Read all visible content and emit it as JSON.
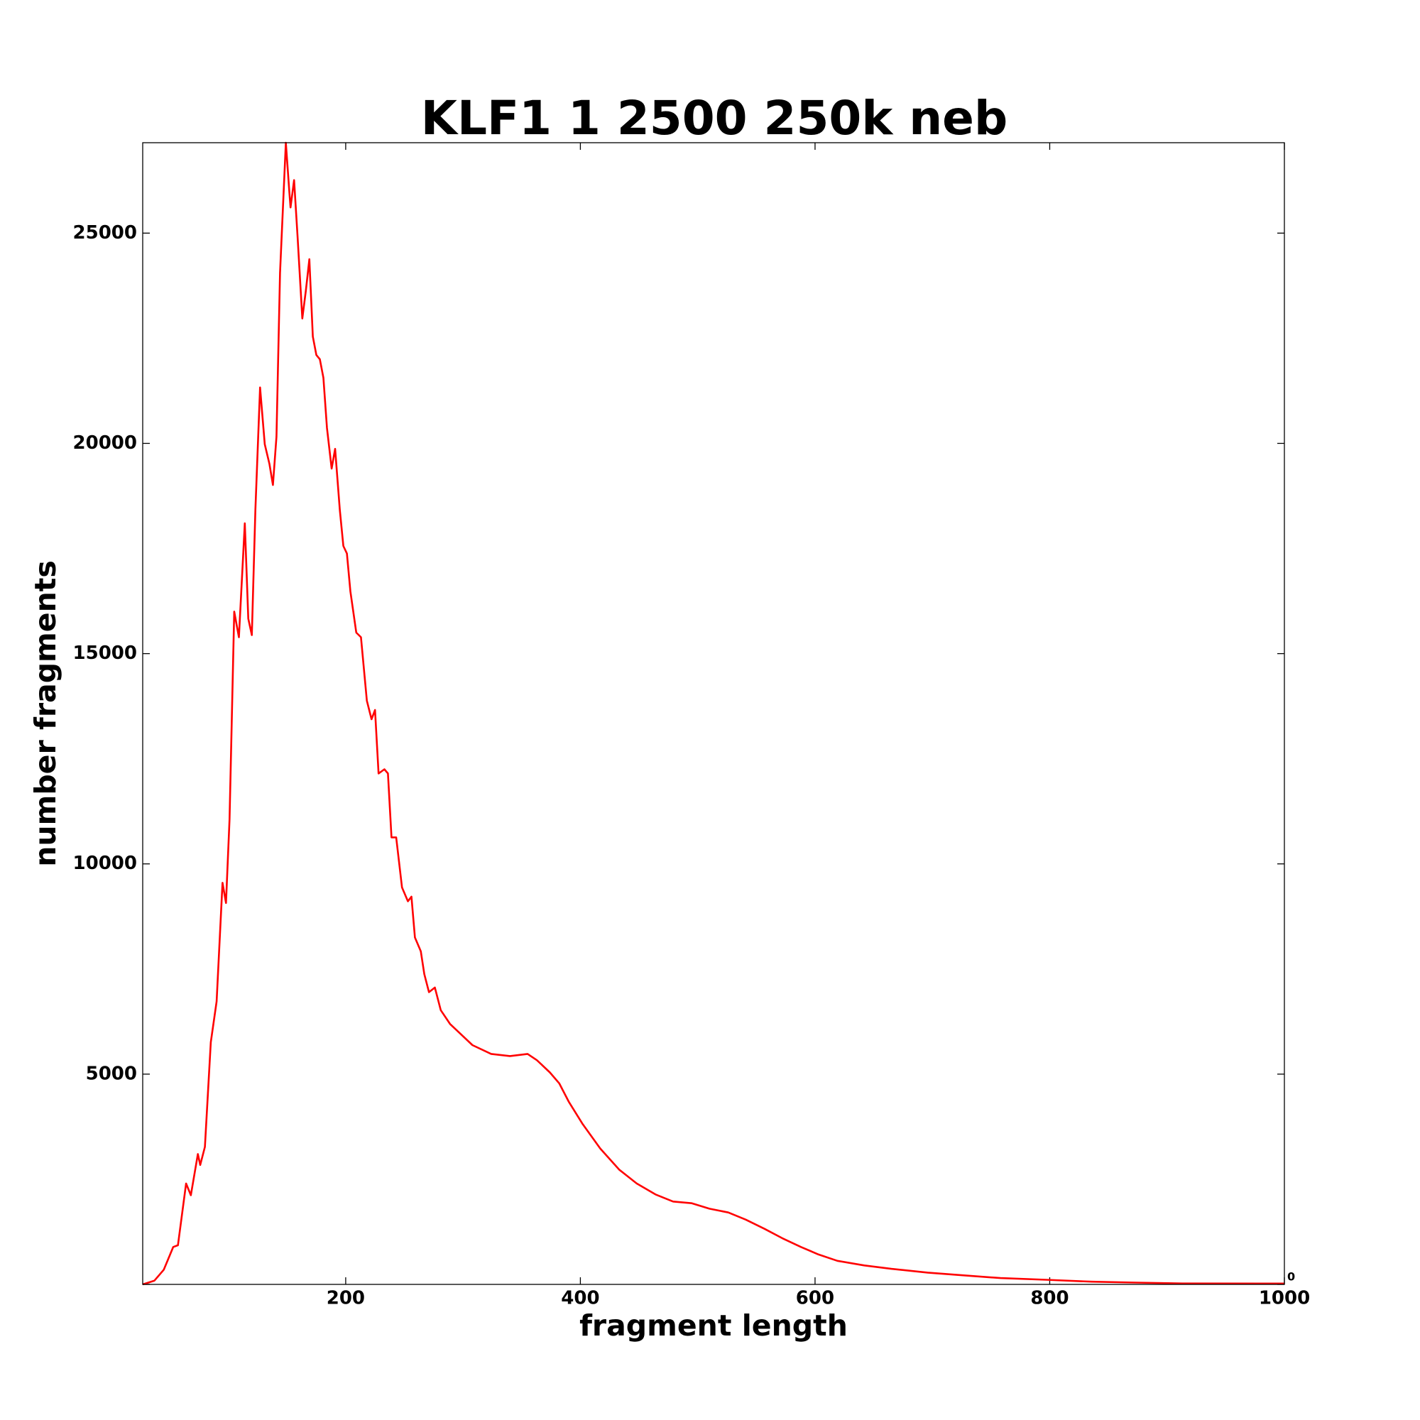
{
  "chart_data": {
    "type": "line",
    "title": "KLF1 1 2500 250k neb",
    "xlabel": "fragment length",
    "ylabel": "number fragments",
    "x": [
      27,
      37,
      45,
      53,
      57,
      64,
      68,
      74,
      76,
      80,
      85,
      90,
      95,
      98,
      101,
      105,
      109,
      114,
      117,
      120,
      123,
      127,
      131,
      135,
      138,
      141,
      144,
      149,
      152,
      153,
      156,
      159,
      163,
      166,
      169,
      172,
      175,
      178,
      181,
      184,
      188,
      191,
      195,
      198,
      201,
      204,
      209,
      213,
      218,
      222,
      225,
      228,
      233,
      236,
      239,
      243,
      248,
      253,
      256,
      259,
      264,
      267,
      271,
      276,
      281,
      289,
      297,
      308,
      324,
      340,
      355,
      363,
      374,
      382,
      390,
      402,
      417,
      433,
      448,
      464,
      479,
      495,
      510,
      526,
      541,
      557,
      572,
      588,
      603,
      619,
      642,
      665,
      696,
      727,
      758,
      797,
      836,
      874,
      913,
      1000
    ],
    "series": [
      {
        "name": "fragments",
        "color": "#ff0000",
        "values": [
          0,
          90,
          350,
          890,
          930,
          2400,
          2120,
          3100,
          2840,
          3270,
          5760,
          6730,
          9550,
          9070,
          11060,
          16000,
          15390,
          18100,
          15830,
          15440,
          18420,
          21330,
          19980,
          19510,
          19010,
          20160,
          24050,
          27150,
          25960,
          25610,
          26260,
          24920,
          22970,
          23620,
          24380,
          22540,
          22100,
          22000,
          21560,
          20370,
          19400,
          19870,
          18420,
          17560,
          17380,
          16480,
          15500,
          15390,
          13880,
          13440,
          13660,
          12150,
          12250,
          12150,
          10630,
          10630,
          9440,
          9110,
          9220,
          8250,
          7920,
          7380,
          6950,
          7060,
          6520,
          6190,
          5980,
          5690,
          5480,
          5430,
          5480,
          5330,
          5040,
          4780,
          4350,
          3810,
          3230,
          2730,
          2400,
          2140,
          1970,
          1930,
          1800,
          1710,
          1540,
          1320,
          1100,
          890,
          710,
          560,
          450,
          370,
          280,
          215,
          150,
          110,
          65,
          43,
          22,
          20
        ]
      }
    ],
    "xlim": [
      27,
      1000
    ],
    "ylim": [
      0,
      27150
    ],
    "xticks": [
      200,
      400,
      600,
      800,
      1000
    ],
    "yticks": [
      0,
      5000,
      10000,
      15000,
      20000,
      25000
    ]
  }
}
